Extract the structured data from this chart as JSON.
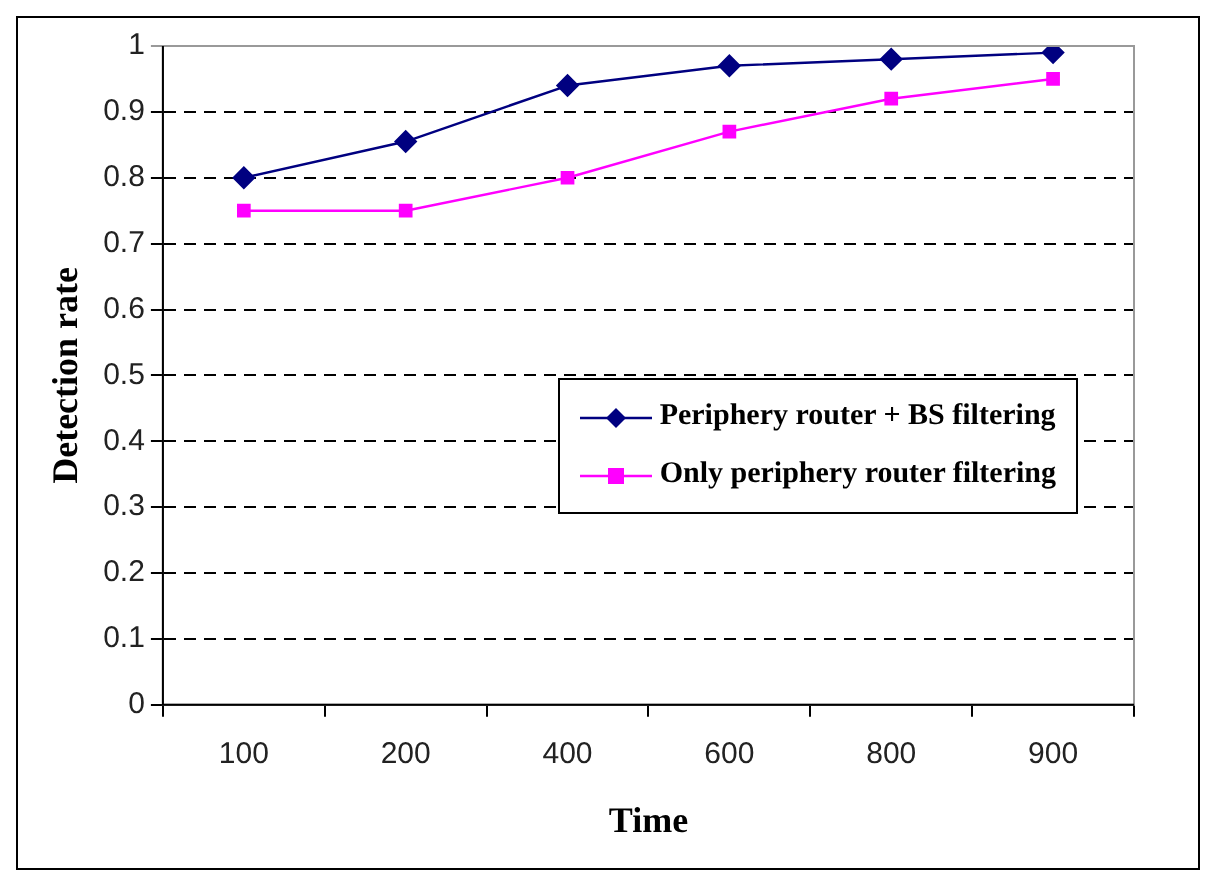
{
  "chart_data": {
    "type": "line",
    "xlabel": "Time",
    "ylabel": "Detection rate",
    "categories": [
      "100",
      "200",
      "400",
      "600",
      "800",
      "900"
    ],
    "series": [
      {
        "name": "Periphery router + BS filtering",
        "color": "#000080",
        "marker": "diamond",
        "values": [
          0.8,
          0.855,
          0.94,
          0.97,
          0.98,
          0.99
        ]
      },
      {
        "name": "Only periphery router filtering",
        "color": "#ff00ff",
        "marker": "square",
        "values": [
          0.75,
          0.75,
          0.8,
          0.87,
          0.92,
          0.95
        ]
      }
    ],
    "ylim": [
      0,
      1
    ],
    "yticks": [
      0,
      0.1,
      0.2,
      0.3,
      0.4,
      0.5,
      0.6,
      0.7,
      0.8,
      0.9,
      1
    ],
    "grid": "y",
    "line_style": "solid",
    "legend": "right"
  }
}
